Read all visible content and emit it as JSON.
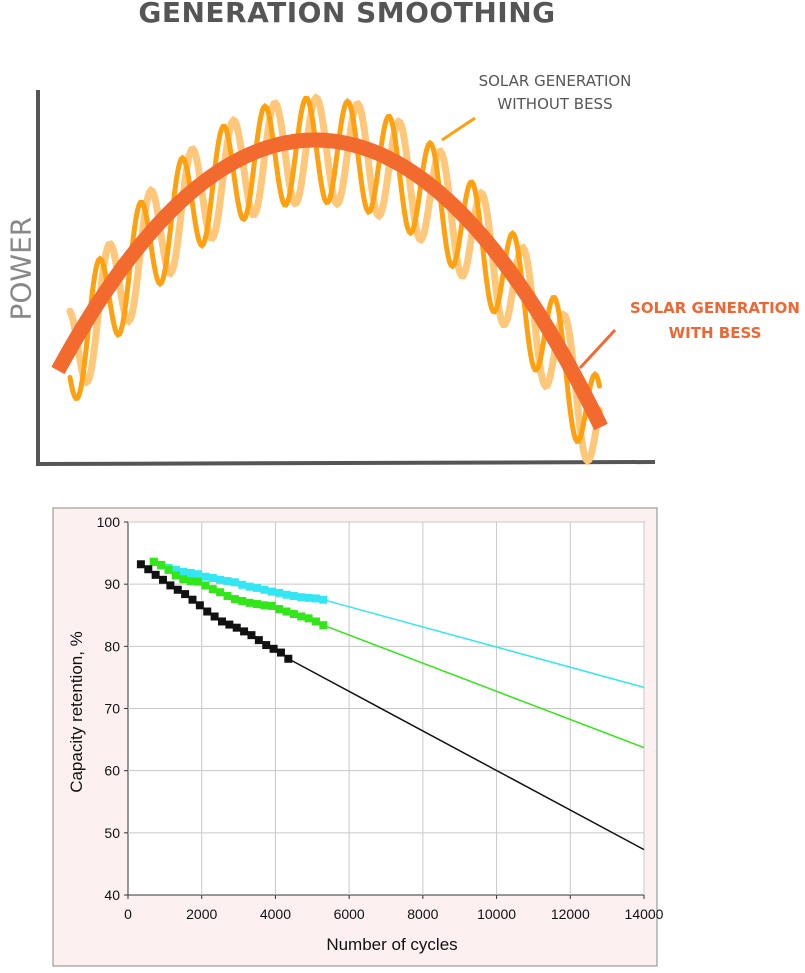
{
  "chart_data": [
    {
      "type": "line",
      "title": "GENERATION SMOOTHING",
      "ylabel": "POWER",
      "xlabel": "",
      "series": [
        {
          "name": "SOLAR GENERATION WITHOUT BESS",
          "color": "#ffa010",
          "shape": "oscillating bell curve"
        },
        {
          "name": "SOLAR GENERATION WITH BESS",
          "color": "#f26a2e",
          "shape": "smooth bell curve"
        }
      ]
    },
    {
      "type": "scatter",
      "title": "",
      "xlabel": "Number of cycles",
      "ylabel": "Capacity retention, %",
      "xlim": [
        0,
        14000
      ],
      "ylim": [
        40,
        100
      ],
      "xticks": [
        0,
        2000,
        4000,
        6000,
        8000,
        10000,
        12000,
        14000
      ],
      "yticks": [
        40,
        50,
        60,
        70,
        80,
        90,
        100
      ],
      "grid": true,
      "series": [
        {
          "color": "#33e6f2",
          "points": [
            [
              700,
              93.6
            ],
            [
              900,
              93.0
            ],
            [
              1100,
              92.6
            ],
            [
              1300,
              92.3
            ],
            [
              1500,
              92.0
            ],
            [
              1700,
              91.8
            ],
            [
              1900,
              91.6
            ],
            [
              2100,
              91.2
            ],
            [
              2300,
              91.0
            ],
            [
              2500,
              90.7
            ],
            [
              2700,
              90.5
            ],
            [
              2900,
              90.3
            ],
            [
              3100,
              89.9
            ],
            [
              3300,
              89.6
            ],
            [
              3500,
              89.4
            ],
            [
              3700,
              89.1
            ],
            [
              3900,
              88.8
            ],
            [
              4100,
              88.6
            ],
            [
              4300,
              88.3
            ],
            [
              4500,
              88.1
            ],
            [
              4700,
              87.9
            ],
            [
              4900,
              87.8
            ],
            [
              5100,
              87.7
            ],
            [
              5300,
              87.5
            ]
          ],
          "trend": [
            [
              5300,
              87.5
            ],
            [
              14000,
              73.4
            ]
          ]
        },
        {
          "color": "#33e61a",
          "points": [
            [
              700,
              93.6
            ],
            [
              900,
              93.1
            ],
            [
              1100,
              92.3
            ],
            [
              1300,
              91.4
            ],
            [
              1500,
              90.8
            ],
            [
              1700,
              90.5
            ],
            [
              1900,
              90.4
            ],
            [
              2100,
              89.8
            ],
            [
              2300,
              89.2
            ],
            [
              2500,
              88.7
            ],
            [
              2700,
              88.1
            ],
            [
              2900,
              87.6
            ],
            [
              3100,
              87.3
            ],
            [
              3300,
              87.0
            ],
            [
              3500,
              86.8
            ],
            [
              3700,
              86.6
            ],
            [
              3900,
              86.5
            ],
            [
              4100,
              86.0
            ],
            [
              4300,
              85.6
            ],
            [
              4500,
              85.2
            ],
            [
              4700,
              84.8
            ],
            [
              4900,
              84.5
            ],
            [
              5100,
              84.0
            ],
            [
              5300,
              83.4
            ]
          ],
          "trend": [
            [
              5300,
              83.4
            ],
            [
              14000,
              63.7
            ]
          ]
        },
        {
          "color": "#111111",
          "points": [
            [
              350,
              93.2
            ],
            [
              550,
              92.4
            ],
            [
              750,
              91.5
            ],
            [
              950,
              90.7
            ],
            [
              1150,
              89.8
            ],
            [
              1350,
              89.1
            ],
            [
              1550,
              88.4
            ],
            [
              1750,
              87.5
            ],
            [
              1950,
              86.6
            ],
            [
              2150,
              85.6
            ],
            [
              2350,
              84.8
            ],
            [
              2550,
              84.0
            ],
            [
              2750,
              83.5
            ],
            [
              2950,
              83.0
            ],
            [
              3150,
              82.4
            ],
            [
              3350,
              81.8
            ],
            [
              3550,
              81.0
            ],
            [
              3750,
              80.2
            ],
            [
              3950,
              79.6
            ],
            [
              4150,
              79.0
            ],
            [
              4350,
              78.0
            ]
          ],
          "trend": [
            [
              4350,
              78.0
            ],
            [
              14000,
              47.3
            ]
          ]
        }
      ]
    }
  ],
  "colors": {
    "title": "#555555",
    "without_bess": "#ffa010",
    "without_bess_light": "#ffc77a",
    "with_bess": "#f26a2e",
    "plot_bg": "#fdf0f1",
    "grid": "#bbbbbb"
  }
}
